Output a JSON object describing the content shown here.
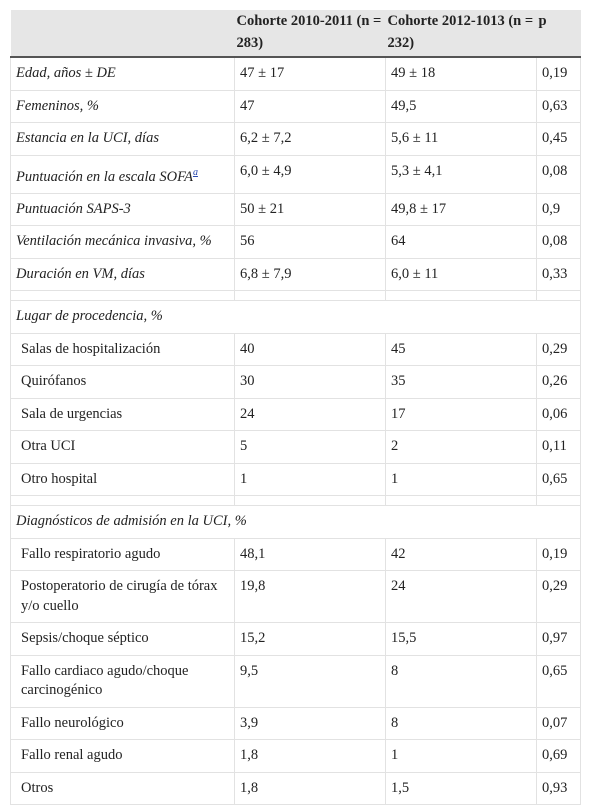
{
  "table": {
    "header": [
      "Cohorte 2010-2011 (n = 283)",
      "Cohorte 2012-1013 (n = 232)",
      "p"
    ],
    "groups": [
      {
        "rows": [
          {
            "label": "Edad, años ± DE",
            "cells": [
              "47 ± 17",
              "49 ± 18",
              "0,19"
            ]
          },
          {
            "label": "Femeninos, %",
            "cells": [
              "47",
              "49,5",
              "0,63"
            ]
          },
          {
            "label": "Estancia en la UCI, días",
            "cells": [
              "6,2 ± 7,2",
              "5,6 ± 11",
              "0,45"
            ]
          },
          {
            "label": "Puntuación en la escala SOFA",
            "note": "a",
            "cells": [
              "6,0 ± 4,9",
              "5,3 ± 4,1",
              "0,08"
            ]
          },
          {
            "label": "Puntuación SAPS-3",
            "cells": [
              "50 ± 21",
              "49,8 ± 17",
              "0,9"
            ]
          },
          {
            "label": "Ventilación mecánica invasiva, %",
            "cells": [
              "56",
              "64",
              "0,08"
            ]
          },
          {
            "label": "Duración en VM, días",
            "cells": [
              "6,8 ± 7,9",
              "6,0 ± 11",
              "0,33"
            ]
          }
        ]
      },
      {
        "title": "Lugar de procedencia, %",
        "rows": [
          {
            "label": "Salas de hospitalización",
            "cells": [
              "40",
              "45",
              "0,29"
            ]
          },
          {
            "label": "Quirófanos",
            "cells": [
              "30",
              "35",
              "0,26"
            ]
          },
          {
            "label": "Sala de urgencias",
            "cells": [
              "24",
              "17",
              "0,06"
            ]
          },
          {
            "label": "Otra UCI",
            "cells": [
              "5",
              "2",
              "0,11"
            ]
          },
          {
            "label": "Otro hospital",
            "cells": [
              "1",
              "1",
              "0,65"
            ]
          }
        ]
      },
      {
        "title": "Diagnósticos de admisión en la UCI, %",
        "rows": [
          {
            "label": "Fallo respiratorio agudo",
            "cells": [
              "48,1",
              "42",
              "0,19"
            ]
          },
          {
            "label": "Postoperatorio de cirugía de tórax y/o cuello",
            "cells": [
              "19,8",
              "24",
              "0,29"
            ]
          },
          {
            "label": "Sepsis/choque séptico",
            "cells": [
              "15,2",
              "15,5",
              "0,97"
            ]
          },
          {
            "label": "Fallo cardiaco agudo/choque carcinogénico",
            "cells": [
              "9,5",
              "8",
              "0,65"
            ]
          },
          {
            "label": "Fallo neurológico",
            "cells": [
              "3,9",
              "8",
              "0,07"
            ]
          },
          {
            "label": "Fallo renal agudo",
            "cells": [
              "1,8",
              "1",
              "0,69"
            ]
          },
          {
            "label": "Otros",
            "cells": [
              "1,8",
              "1,5",
              "0,93"
            ]
          }
        ]
      }
    ]
  }
}
